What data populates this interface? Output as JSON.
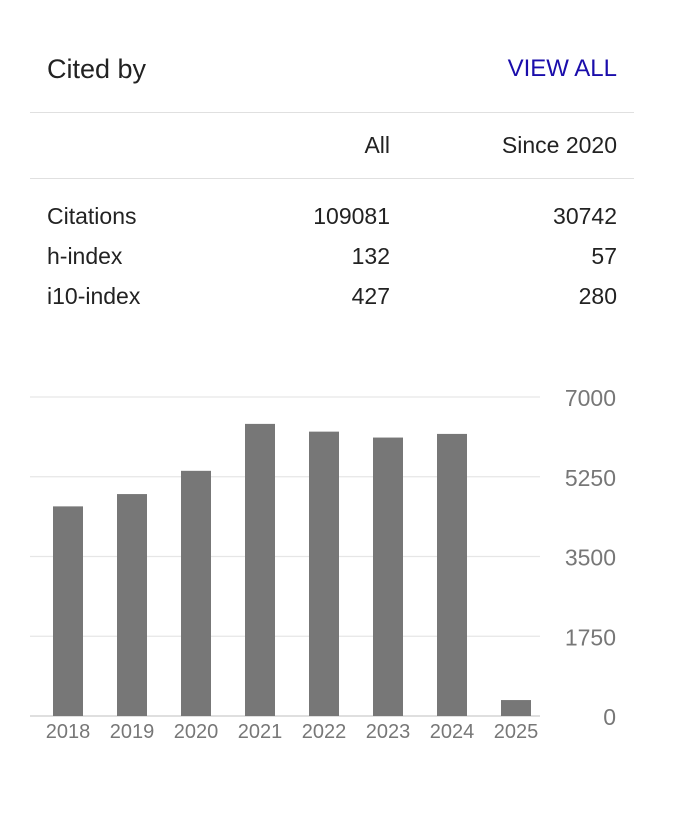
{
  "header": {
    "title": "Cited by",
    "view_all_label": "VIEW ALL"
  },
  "stats": {
    "columns": [
      "All",
      "Since 2020"
    ],
    "rows": [
      {
        "label": "Citations",
        "all": "109081",
        "since": "30742"
      },
      {
        "label": "h-index",
        "all": "132",
        "since": "57"
      },
      {
        "label": "i10-index",
        "all": "427",
        "since": "280"
      }
    ]
  },
  "chart_data": {
    "type": "bar",
    "categories": [
      "2018",
      "2019",
      "2020",
      "2021",
      "2022",
      "2023",
      "2024",
      "2025"
    ],
    "values": [
      4600,
      4870,
      5380,
      6410,
      6240,
      6110,
      6190,
      350
    ],
    "ylim": [
      0,
      7000
    ],
    "yticks": [
      "0",
      "1750",
      "3500",
      "5250",
      "7000"
    ],
    "grid": true,
    "bar_color": "#777777"
  }
}
